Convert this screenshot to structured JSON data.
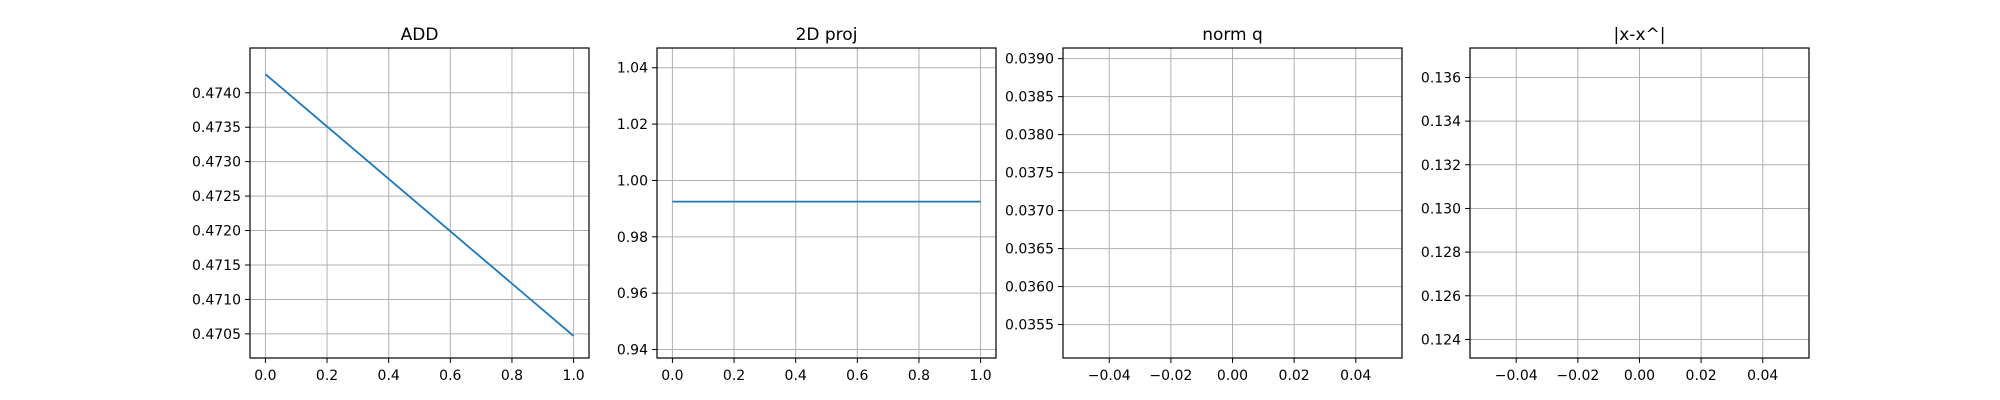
{
  "chart_data": [
    {
      "type": "line",
      "title": "ADD",
      "xlabel": "",
      "ylabel": "",
      "xlim": [
        -0.05,
        1.05
      ],
      "ylim": [
        0.47015,
        0.47465
      ],
      "xticks": [
        0.0,
        0.2,
        0.4,
        0.6,
        0.8,
        1.0
      ],
      "xtick_labels": [
        "0.0",
        "0.2",
        "0.4",
        "0.6",
        "0.8",
        "1.0"
      ],
      "yticks": [
        0.4705,
        0.471,
        0.4715,
        0.472,
        0.4725,
        0.473,
        0.4735,
        0.474
      ],
      "ytick_labels": [
        "0.4705",
        "0.4710",
        "0.4715",
        "0.4720",
        "0.4725",
        "0.4730",
        "0.4735",
        "0.4740"
      ],
      "grid": true,
      "series": [
        {
          "x": [
            0,
            1
          ],
          "y": [
            0.47427,
            0.47047
          ],
          "color": "#1f77b4"
        }
      ]
    },
    {
      "type": "line",
      "title": "2D proj",
      "xlabel": "",
      "ylabel": "",
      "xlim": [
        -0.05,
        1.05
      ],
      "ylim": [
        0.937,
        1.047
      ],
      "xticks": [
        0.0,
        0.2,
        0.4,
        0.6,
        0.8,
        1.0
      ],
      "xtick_labels": [
        "0.0",
        "0.2",
        "0.4",
        "0.6",
        "0.8",
        "1.0"
      ],
      "yticks": [
        0.94,
        0.96,
        0.98,
        1.0,
        1.02,
        1.04
      ],
      "ytick_labels": [
        "0.94",
        "0.96",
        "0.98",
        "1.00",
        "1.02",
        "1.04"
      ],
      "grid": true,
      "series": [
        {
          "x": [
            0,
            1
          ],
          "y": [
            0.9925,
            0.9925
          ],
          "color": "#1f77b4"
        }
      ]
    },
    {
      "type": "line",
      "title": "norm q",
      "xlabel": "",
      "ylabel": "",
      "xlim": [
        -0.055,
        0.055
      ],
      "ylim": [
        0.03506,
        0.03914
      ],
      "xticks": [
        -0.04,
        -0.02,
        0.0,
        0.02,
        0.04
      ],
      "xtick_labels": [
        "−0.04",
        "−0.02",
        "0.00",
        "0.02",
        "0.04"
      ],
      "yticks": [
        0.0355,
        0.036,
        0.0365,
        0.037,
        0.0375,
        0.038,
        0.0385,
        0.039
      ],
      "ytick_labels": [
        "0.0355",
        "0.0360",
        "0.0365",
        "0.0370",
        "0.0375",
        "0.0380",
        "0.0385",
        "0.0390"
      ],
      "grid": true,
      "series": []
    },
    {
      "type": "line",
      "title": "|x-x^|",
      "xlabel": "",
      "ylabel": "",
      "xlim": [
        -0.055,
        0.055
      ],
      "ylim": [
        0.12315,
        0.13735
      ],
      "xticks": [
        -0.04,
        -0.02,
        0.0,
        0.02,
        0.04
      ],
      "xtick_labels": [
        "−0.04",
        "−0.02",
        "0.00",
        "0.02",
        "0.04"
      ],
      "yticks": [
        0.124,
        0.126,
        0.128,
        0.13,
        0.132,
        0.134,
        0.136
      ],
      "ytick_labels": [
        "0.124",
        "0.126",
        "0.128",
        "0.130",
        "0.132",
        "0.134",
        "0.136"
      ],
      "grid": true,
      "series": []
    }
  ]
}
